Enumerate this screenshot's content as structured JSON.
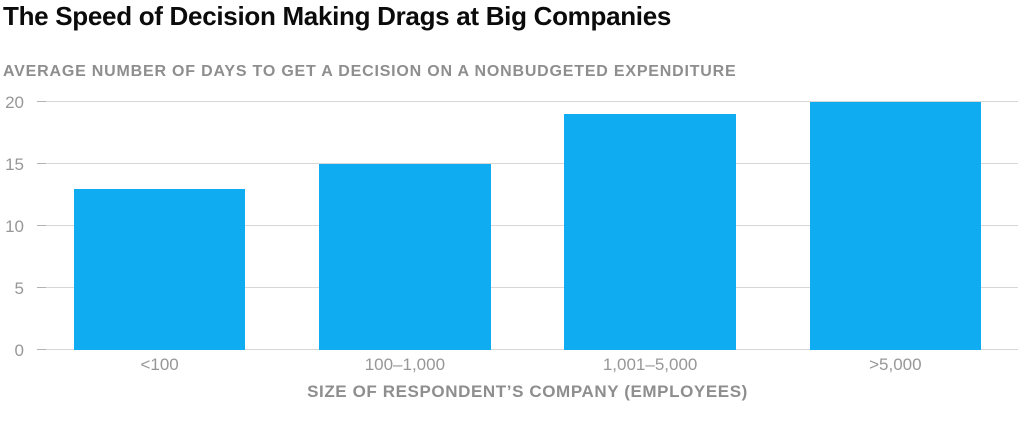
{
  "chart_data": {
    "type": "bar",
    "title": "The Speed of Decision Making Drags at Big Companies",
    "subtitle": "AVERAGE NUMBER OF DAYS TO GET A DECISION ON A NONBUDGETED EXPENDITURE",
    "categories": [
      "<100",
      "100–1,000",
      "1,001–5,000",
      ">5,000"
    ],
    "values": [
      13,
      15,
      19,
      20
    ],
    "xlabel": "SIZE OF RESPONDENT’S COMPANY (EMPLOYEES)",
    "ylabel": "",
    "ylim": [
      0,
      20
    ],
    "yticks": [
      0,
      5,
      10,
      15,
      20
    ],
    "grid": true,
    "legend": false,
    "bar_color": "#10acf2",
    "gridline_color": "#d7d7d7",
    "tick_mark_color": "#b2b2b2",
    "title_color": "#0b0b0b",
    "subtitle_color": "#8e8e8e",
    "axis_text_color": "#979797"
  }
}
